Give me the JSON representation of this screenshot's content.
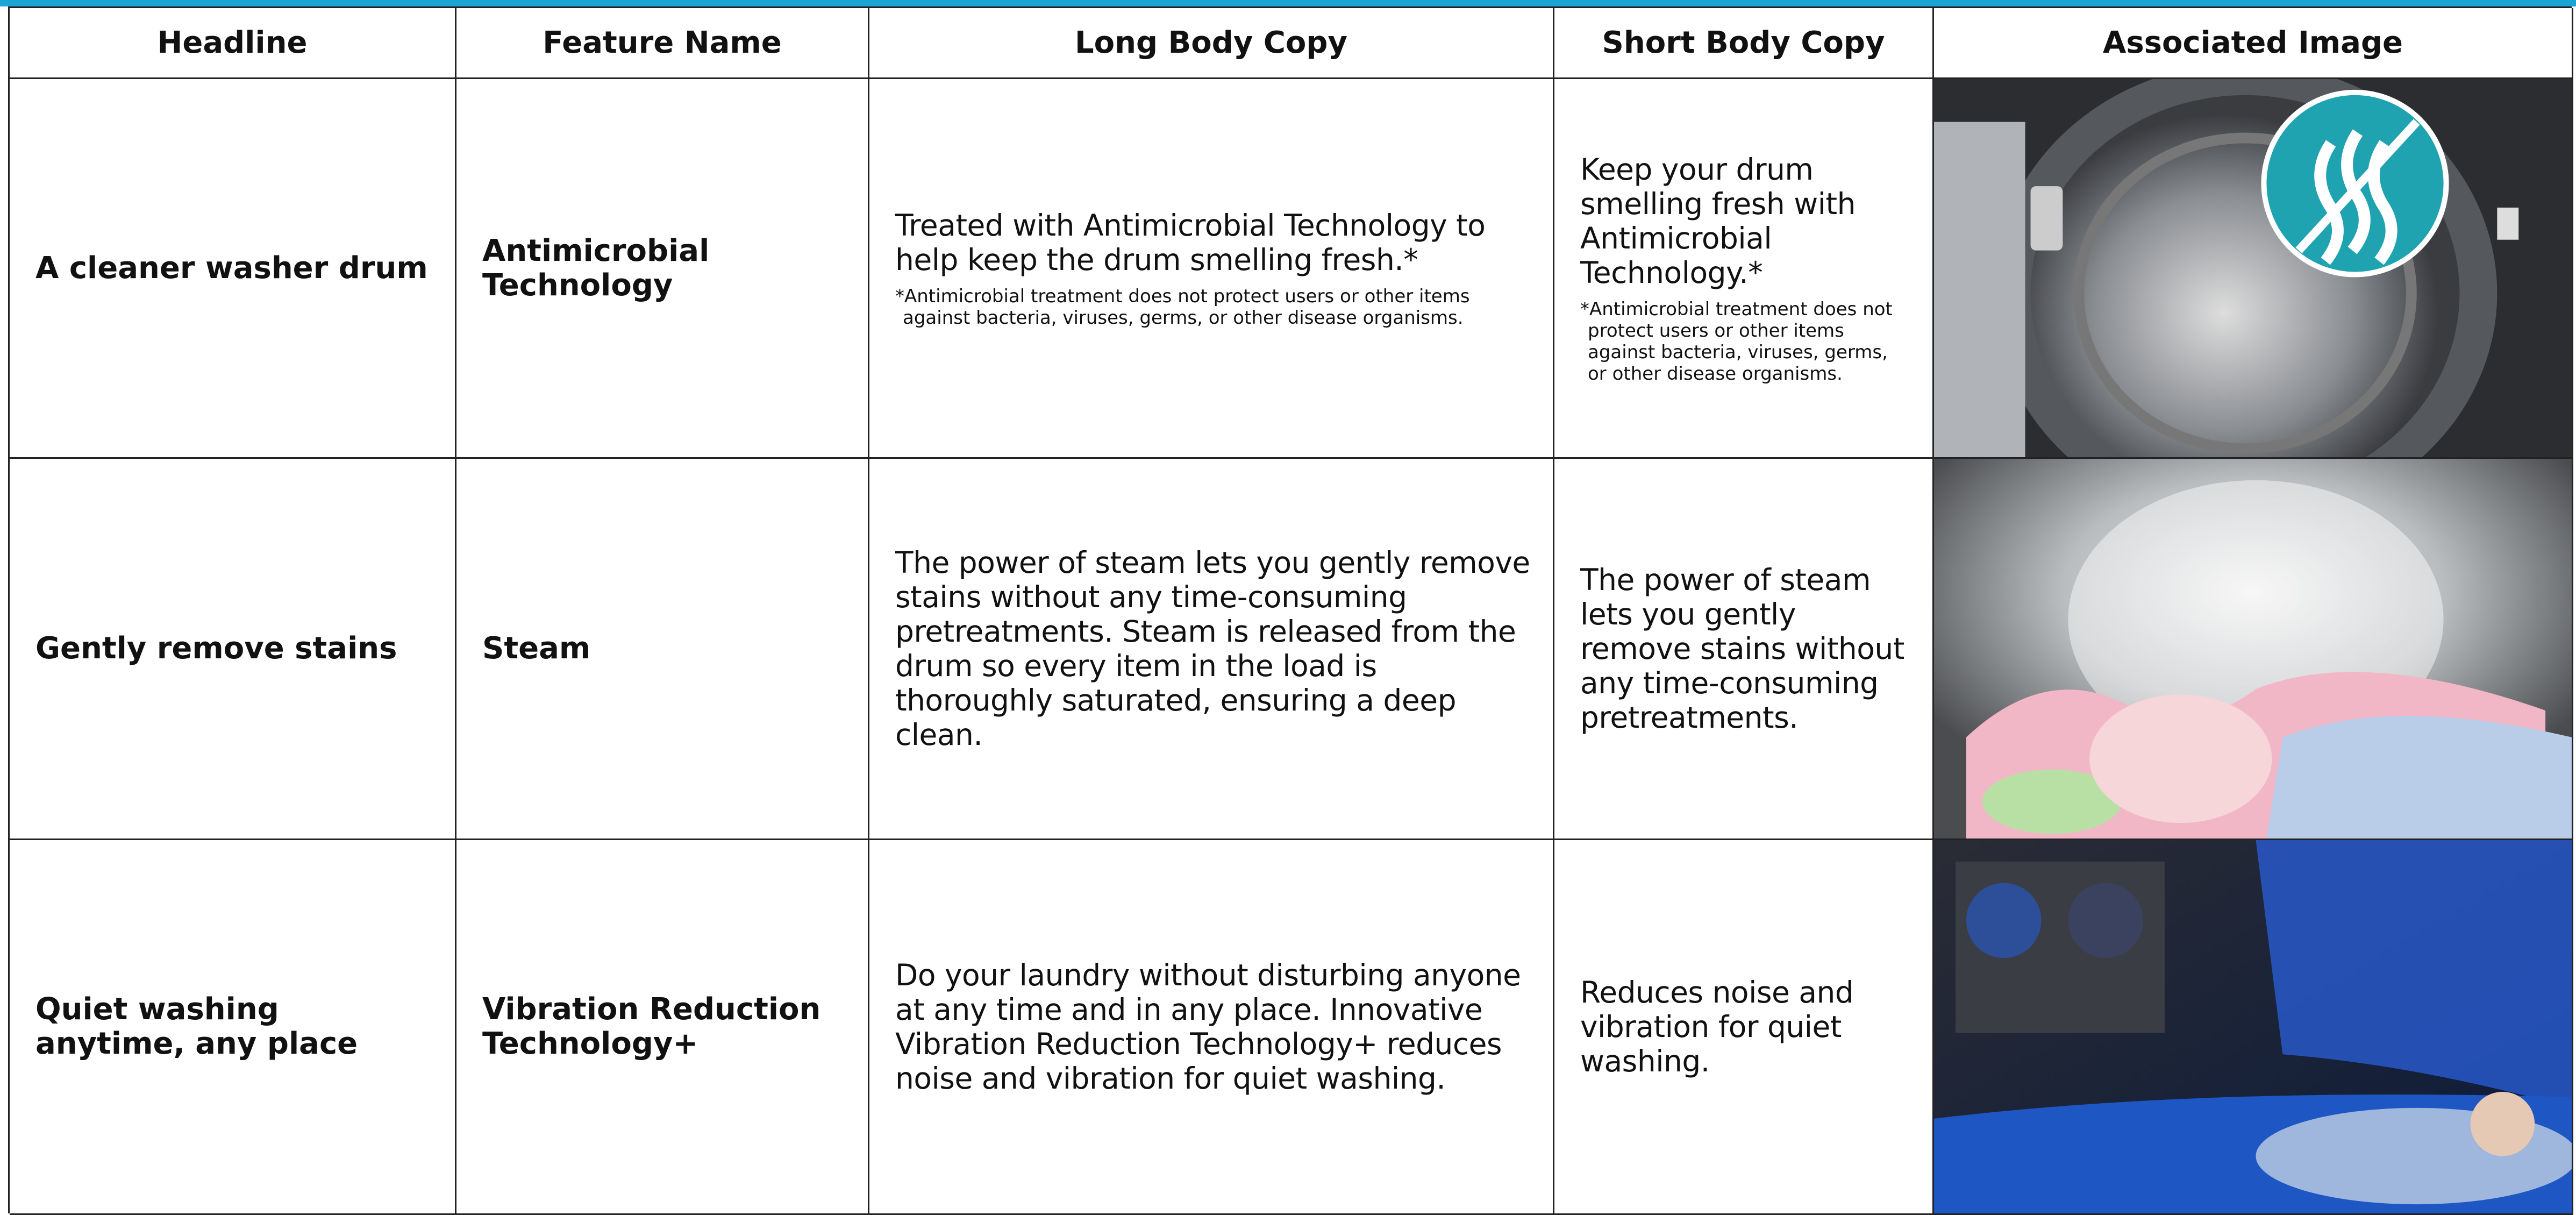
{
  "table": {
    "headers": [
      "Headline",
      "Feature Name",
      "Long Body Copy",
      "Short Body Copy",
      "Associated Image"
    ],
    "rows": [
      {
        "headline": "A cleaner washer drum",
        "feature_name": "Antimicrobial Technology",
        "long_body": {
          "text": "Treated with Antimicrobial Technology to help keep the drum smelling fresh.*",
          "footnote": "*Antimicrobial treatment does not protect users or other items against bacteria, viruses, germs, or other disease organisms."
        },
        "short_body": {
          "text": "Keep your drum smelling fresh with Antimicrobial Technology.*",
          "footnote": "*Antimicrobial treatment does not protect users or other items against bacteria, viruses, germs, or other disease organisms."
        }
      },
      {
        "headline": "Gently remove stains",
        "feature_name": "Steam",
        "long_body": {
          "text": "The power of steam lets you gently remove stains without any time-consuming pretreatments. Steam is released from the drum so every item in the load is thoroughly saturated, ensuring a deep clean."
        },
        "short_body": {
          "text": "The power of steam lets you gently remove stains without any time-consuming pretreatments."
        }
      },
      {
        "headline": "Quiet washing anytime, any place",
        "feature_name": "Vibration Reduction Technology+",
        "long_body": {
          "text": "Do your laundry without disturbing anyone at any time and in any place. Innovative Vibration Reduction Technology+ reduces noise and vibration for quiet washing."
        },
        "short_body": {
          "text": "Reduces noise and vibration for quiet washing."
        }
      }
    ]
  }
}
